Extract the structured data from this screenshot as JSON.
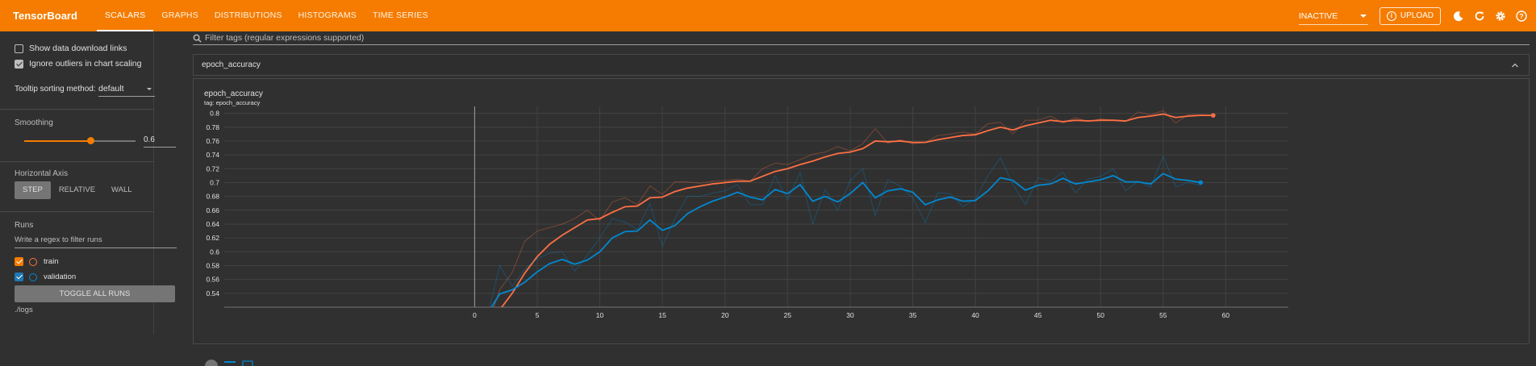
{
  "app": {
    "brand": "TensorBoard",
    "tabs": [
      {
        "label": "SCALARS",
        "active": true
      },
      {
        "label": "GRAPHS",
        "active": false
      },
      {
        "label": "DISTRIBUTIONS",
        "active": false
      },
      {
        "label": "HISTOGRAMS",
        "active": false
      },
      {
        "label": "TIME SERIES",
        "active": false
      }
    ],
    "status": "INACTIVE",
    "upload_label": "UPLOAD",
    "icons": [
      "theme-moon-icon",
      "refresh-icon",
      "settings-gear-icon",
      "help-icon"
    ],
    "accent_color": "#f57c00"
  },
  "sidebar": {
    "show_download_links": {
      "label": "Show data download links",
      "checked": false
    },
    "ignore_outliers": {
      "label": "Ignore outliers in chart scaling",
      "checked": true
    },
    "tooltip_sorting": {
      "label": "Tooltip sorting method:",
      "value": "default"
    },
    "smoothing": {
      "title": "Smoothing",
      "value": "0.6",
      "fraction": 0.6
    },
    "horizontal_axis": {
      "title": "Horizontal Axis",
      "options": [
        "STEP",
        "RELATIVE",
        "WALL"
      ],
      "selected": "STEP"
    },
    "runs": {
      "title": "Runs",
      "filter_placeholder": "Write a regex to filter runs",
      "items": [
        {
          "name": "train",
          "checked": true,
          "color": "#ff7043"
        },
        {
          "name": "validation",
          "checked": true,
          "color": "#0288d1"
        }
      ],
      "toggle_label": "TOGGLE ALL RUNS",
      "logdir": "./logs"
    }
  },
  "main": {
    "filter_placeholder": "Filter tags (regular expressions supported)",
    "group": {
      "name": "epoch_accuracy",
      "expanded": true
    },
    "card": {
      "title": "epoch_accuracy",
      "tag": "tag: epoch_accuracy"
    }
  },
  "chart_data": {
    "type": "line",
    "title": "epoch_accuracy",
    "subtitle": "tag: epoch_accuracy",
    "xlabel": "",
    "ylabel": "",
    "xlim": [
      -20,
      65
    ],
    "ylim": [
      0.52,
      0.81
    ],
    "x_ticks": [
      0,
      5,
      10,
      15,
      20,
      25,
      30,
      35,
      40,
      45,
      50,
      55,
      60
    ],
    "y_ticks": [
      0.54,
      0.56,
      0.58,
      0.6,
      0.62,
      0.64,
      0.66,
      0.68,
      0.7,
      0.72,
      0.74,
      0.76,
      0.78,
      0.8
    ],
    "grid": true,
    "series": [
      {
        "name": "train",
        "color": "#ff7043",
        "x": [
          1,
          2,
          3,
          4,
          5,
          6,
          7,
          8,
          9,
          10,
          11,
          12,
          13,
          14,
          15,
          16,
          17,
          18,
          19,
          20,
          21,
          22,
          23,
          24,
          25,
          26,
          27,
          28,
          29,
          30,
          31,
          32,
          33,
          34,
          35,
          36,
          37,
          38,
          39,
          40,
          41,
          42,
          43,
          44,
          45,
          46,
          47,
          48,
          49,
          50,
          51,
          52,
          53,
          54,
          55,
          56,
          57,
          58,
          59
        ],
        "smoothed": [
          0.495,
          0.516,
          0.54,
          0.569,
          0.593,
          0.611,
          0.624,
          0.635,
          0.646,
          0.648,
          0.657,
          0.665,
          0.666,
          0.678,
          0.679,
          0.687,
          0.692,
          0.695,
          0.698,
          0.7,
          0.702,
          0.702,
          0.709,
          0.716,
          0.72,
          0.726,
          0.731,
          0.737,
          0.742,
          0.744,
          0.749,
          0.76,
          0.759,
          0.76,
          0.758,
          0.758,
          0.762,
          0.765,
          0.768,
          0.769,
          0.775,
          0.78,
          0.776,
          0.782,
          0.786,
          0.79,
          0.788,
          0.79,
          0.789,
          0.79,
          0.79,
          0.789,
          0.794,
          0.796,
          0.799,
          0.794,
          0.796,
          0.797,
          0.797
        ],
        "raw": [
          0.49,
          0.545,
          0.57,
          0.615,
          0.63,
          0.635,
          0.64,
          0.648,
          0.66,
          0.645,
          0.672,
          0.678,
          0.668,
          0.695,
          0.683,
          0.701,
          0.701,
          0.699,
          0.702,
          0.703,
          0.705,
          0.702,
          0.72,
          0.728,
          0.726,
          0.733,
          0.741,
          0.744,
          0.752,
          0.746,
          0.756,
          0.778,
          0.757,
          0.762,
          0.756,
          0.758,
          0.768,
          0.77,
          0.773,
          0.77,
          0.785,
          0.787,
          0.77,
          0.79,
          0.79,
          0.796,
          0.786,
          0.794,
          0.788,
          0.792,
          0.79,
          0.788,
          0.802,
          0.798,
          0.804,
          0.786,
          0.798,
          0.798,
          0.797
        ]
      },
      {
        "name": "validation",
        "color": "#0288d1",
        "x": [
          1,
          2,
          3,
          4,
          5,
          6,
          7,
          8,
          9,
          10,
          11,
          12,
          13,
          14,
          15,
          16,
          17,
          18,
          19,
          20,
          21,
          22,
          23,
          24,
          25,
          26,
          27,
          28,
          29,
          30,
          31,
          32,
          33,
          34,
          35,
          36,
          37,
          38,
          39,
          40,
          41,
          42,
          43,
          44,
          45,
          46,
          47,
          48,
          49,
          50,
          51,
          52,
          53,
          54,
          55,
          56,
          57,
          58
        ],
        "smoothed": [
          0.51,
          0.539,
          0.545,
          0.556,
          0.571,
          0.583,
          0.589,
          0.582,
          0.588,
          0.6,
          0.62,
          0.629,
          0.63,
          0.646,
          0.631,
          0.638,
          0.655,
          0.665,
          0.673,
          0.679,
          0.686,
          0.679,
          0.675,
          0.69,
          0.684,
          0.697,
          0.673,
          0.68,
          0.672,
          0.684,
          0.7,
          0.678,
          0.688,
          0.691,
          0.686,
          0.668,
          0.675,
          0.679,
          0.673,
          0.674,
          0.688,
          0.707,
          0.703,
          0.689,
          0.696,
          0.698,
          0.706,
          0.698,
          0.701,
          0.704,
          0.71,
          0.701,
          0.701,
          0.698,
          0.713,
          0.705,
          0.703,
          0.7
        ],
        "raw": [
          0.505,
          0.58,
          0.55,
          0.575,
          0.59,
          0.598,
          0.6,
          0.572,
          0.595,
          0.62,
          0.648,
          0.643,
          0.632,
          0.67,
          0.608,
          0.648,
          0.68,
          0.68,
          0.685,
          0.688,
          0.697,
          0.668,
          0.668,
          0.71,
          0.675,
          0.715,
          0.64,
          0.69,
          0.66,
          0.703,
          0.72,
          0.652,
          0.704,
          0.695,
          0.678,
          0.642,
          0.685,
          0.684,
          0.665,
          0.676,
          0.71,
          0.736,
          0.697,
          0.668,
          0.707,
          0.702,
          0.715,
          0.685,
          0.705,
          0.709,
          0.72,
          0.688,
          0.702,
          0.693,
          0.738,
          0.694,
          0.7,
          0.696
        ]
      }
    ]
  }
}
